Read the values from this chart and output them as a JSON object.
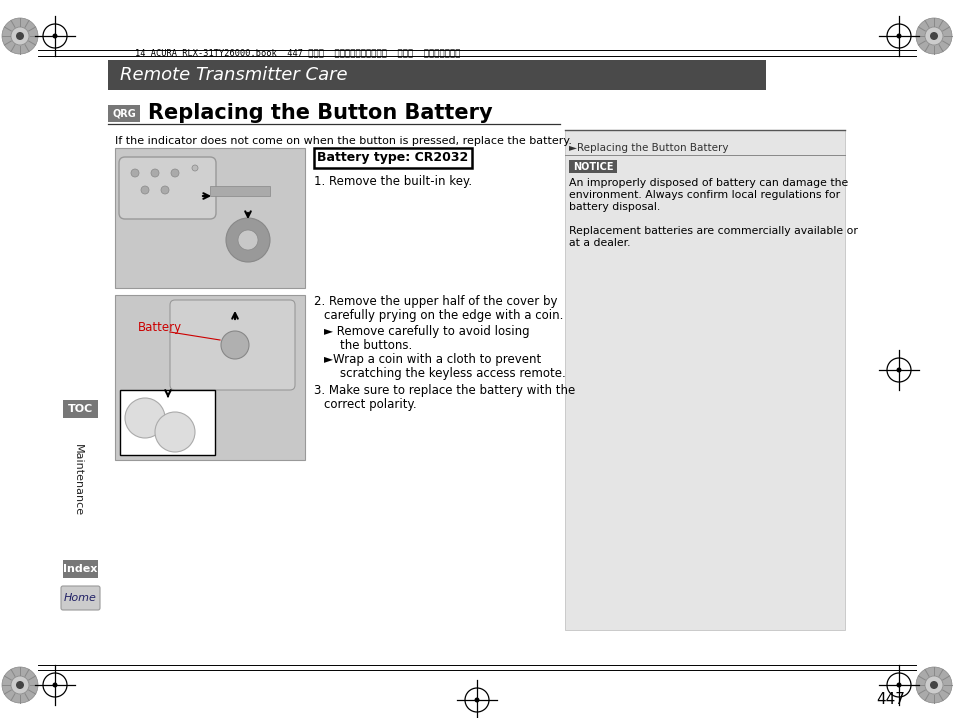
{
  "page_bg": "#ffffff",
  "header_bar_color": "#4a4a4a",
  "header_text": "Remote Transmitter Care",
  "header_text_color": "#ffffff",
  "header_font_size": 14,
  "top_meta_text": "14 ACURA RLX-31TY26000.book  447 ページ  ２０１３年３月１８日  月曜日  午後３時１８分",
  "qrg_box_color": "#777777",
  "qrg_text": "QRG",
  "section_title": "Replacing the Button Battery",
  "intro_text": "If the indicator does not come on when the button is pressed, replace the battery.",
  "battery_type_box": "Battery type: CR2032",
  "step1": "1. Remove the built-in key.",
  "step2_line1": "2. Remove the upper half of the cover by",
  "step2_line2": "carefully prying on the edge with a coin.",
  "step2_b1a": "► Remove carefully to avoid losing",
  "step2_b1b": "the buttons.",
  "step2_b2a": "►Wrap a coin with a cloth to prevent",
  "step2_b2b": "scratching the keyless access remote.",
  "step3_line1": "3. Make sure to replace the battery with the",
  "step3_line2": "correct polarity.",
  "battery_label": "Battery",
  "battery_label_color": "#cc0000",
  "right_panel_bg": "#e5e5e5",
  "right_header_text": "►Replacing the Button Battery",
  "notice_box_bg": "#555555",
  "notice_box_text": "NOTICE",
  "notice_line1": "An improperly disposed of battery can damage the",
  "notice_line2": "environment. Always confirm local regulations for",
  "notice_line3": "battery disposal.",
  "notice_line4": "Replacement batteries are commercially available or",
  "notice_line5": "at a dealer.",
  "toc_box_color": "#777777",
  "toc_text": "TOC",
  "index_box_color": "#777777",
  "index_text": "Index",
  "maintenance_text": "Maintenance",
  "page_number": "447",
  "divider_line_color": "#333333",
  "image1_bg": "#cccccc",
  "image2_bg": "#cccccc"
}
